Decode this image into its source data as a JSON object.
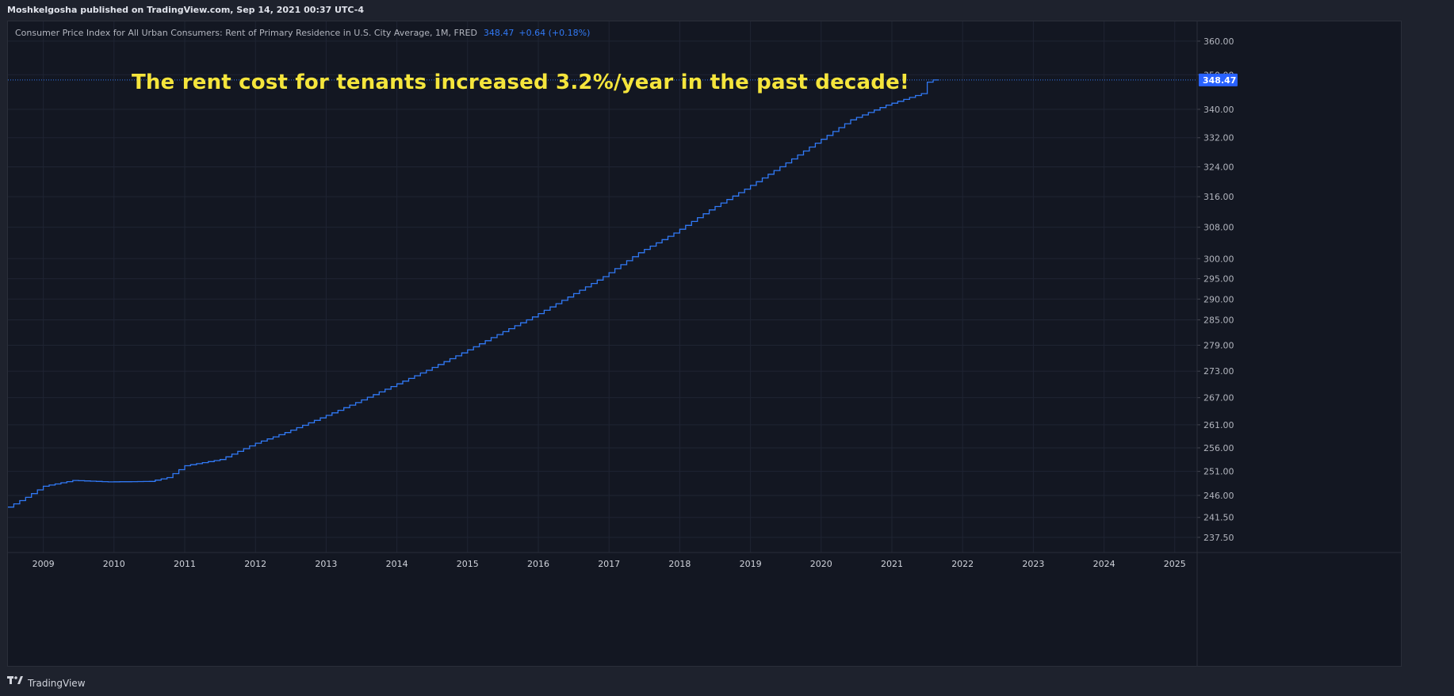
{
  "header": {
    "published_text": "Moshkelgosha published on TradingView.com, Sep 14, 2021 00:37 UTC-4"
  },
  "legend": {
    "series_name": "Consumer Price Index for All Urban Consumers: Rent of Primary Residence in U.S. City Average, 1M, FRED",
    "last_value": "348.47",
    "change": "+0.64 (+0.18%)"
  },
  "annotation": {
    "text": "The rent cost for tenants increased 3.2%/year in the past decade!"
  },
  "footer": {
    "brand": "TradingView"
  },
  "colors": {
    "background": "#131722",
    "grid": "#1f2433",
    "line": "#3179f5",
    "annotation": "#f5e53c",
    "price_tag": "#2962ff"
  },
  "chart_data": {
    "type": "line",
    "step": true,
    "scale": "log",
    "x_start": "2008-07",
    "x_ticks": [
      "2009",
      "2010",
      "2011",
      "2012",
      "2013",
      "2014",
      "2015",
      "2016",
      "2017",
      "2018",
      "2019",
      "2020",
      "2021",
      "2022",
      "2023",
      "2024",
      "2025"
    ],
    "y_ticks": [
      "360.00",
      "350.00",
      "340.00",
      "332.00",
      "324.00",
      "316.00",
      "308.00",
      "300.00",
      "295.00",
      "290.00",
      "285.00",
      "279.00",
      "273.00",
      "267.00",
      "261.00",
      "256.00",
      "251.00",
      "246.00",
      "241.50",
      "237.50"
    ],
    "last_value_label": "348.47",
    "ylim": [
      234.5,
      366
    ],
    "points": [
      [
        "2008-07",
        243.6
      ],
      [
        "2008-10",
        245.6
      ],
      [
        "2009-01",
        247.9
      ],
      [
        "2009-06",
        249.1
      ],
      [
        "2009-12",
        248.8
      ],
      [
        "2010-07",
        248.9
      ],
      [
        "2010-10",
        249.7
      ],
      [
        "2011-01",
        252.2
      ],
      [
        "2011-07",
        253.5
      ],
      [
        "2012-01",
        257.0
      ],
      [
        "2012-06",
        259.3
      ],
      [
        "2012-12",
        262.5
      ],
      [
        "2013-06",
        265.9
      ],
      [
        "2013-12",
        269.5
      ],
      [
        "2014-06",
        273.2
      ],
      [
        "2014-12",
        277.2
      ],
      [
        "2015-06",
        281.5
      ],
      [
        "2015-12",
        285.7
      ],
      [
        "2016-06",
        290.5
      ],
      [
        "2016-12",
        295.5
      ],
      [
        "2017-06",
        301.5
      ],
      [
        "2017-12",
        306.5
      ],
      [
        "2018-06",
        312.5
      ],
      [
        "2018-12",
        318.0
      ],
      [
        "2019-06",
        324.0
      ],
      [
        "2019-12",
        330.5
      ],
      [
        "2020-06",
        337.0
      ],
      [
        "2020-12",
        341.2
      ],
      [
        "2021-06",
        344.5
      ],
      [
        "2021-07",
        347.83
      ],
      [
        "2021-08",
        348.47
      ]
    ]
  }
}
